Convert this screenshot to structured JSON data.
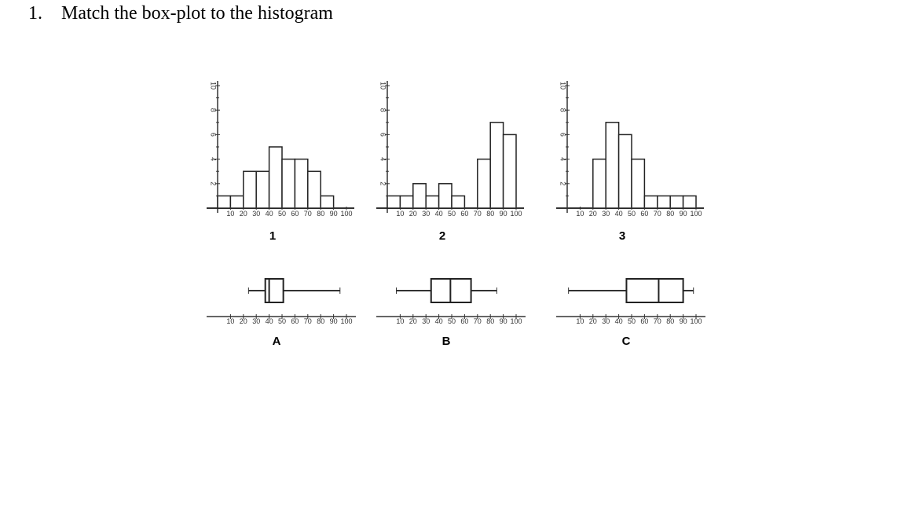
{
  "question": {
    "number": "1.",
    "text": "Match the box-plot to the histogram"
  },
  "chart_data": [
    {
      "type": "histogram",
      "title": "1",
      "bins": [
        0,
        10,
        20,
        30,
        40,
        50,
        60,
        70,
        80,
        90
      ],
      "counts": [
        1,
        1,
        3,
        3,
        5,
        4,
        4,
        3,
        1
      ],
      "xlim": [
        0,
        100
      ],
      "xticks": [
        10,
        20,
        30,
        40,
        50,
        60,
        70,
        80,
        90,
        100
      ],
      "ylim": [
        0,
        10
      ],
      "yticks": [
        2,
        4,
        6,
        8,
        10
      ],
      "color": "#ffffff"
    },
    {
      "type": "histogram",
      "title": "2",
      "bins": [
        0,
        10,
        20,
        30,
        40,
        50,
        60,
        70,
        80,
        90,
        100
      ],
      "counts": [
        1,
        1,
        2,
        1,
        2,
        1,
        0,
        4,
        7,
        6
      ],
      "xlim": [
        0,
        100
      ],
      "xticks": [
        10,
        20,
        30,
        40,
        50,
        60,
        70,
        80,
        90,
        100
      ],
      "ylim": [
        0,
        10
      ],
      "yticks": [
        2,
        4,
        6,
        8,
        10
      ],
      "color": "#ffffff"
    },
    {
      "type": "histogram",
      "title": "3",
      "bins": [
        0,
        10,
        20,
        30,
        40,
        50,
        60,
        70,
        80,
        90,
        100
      ],
      "counts": [
        0,
        0,
        4,
        7,
        6,
        4,
        1,
        1,
        1,
        1
      ],
      "xlim": [
        0,
        100
      ],
      "xticks": [
        10,
        20,
        30,
        40,
        50,
        60,
        70,
        80,
        90,
        100
      ],
      "ylim": [
        0,
        10
      ],
      "yticks": [
        2,
        4,
        6,
        8,
        10
      ],
      "color": "#ffffff"
    },
    {
      "type": "box",
      "title": "A",
      "min": 24,
      "q1": 37,
      "median": 40,
      "q3": 51,
      "max": 95,
      "xlim": [
        0,
        100
      ],
      "xticks": [
        10,
        20,
        30,
        40,
        50,
        60,
        70,
        80,
        90,
        100
      ],
      "color": "#ffffff"
    },
    {
      "type": "box",
      "title": "B",
      "min": 7,
      "q1": 34,
      "median": 49,
      "q3": 65,
      "max": 85,
      "xlim": [
        0,
        100
      ],
      "xticks": [
        10,
        20,
        30,
        40,
        50,
        60,
        70,
        80,
        90,
        100
      ],
      "color": "#ffffff"
    },
    {
      "type": "box",
      "title": "C",
      "min": 1,
      "q1": 46,
      "median": 71,
      "q3": 90,
      "max": 98,
      "xlim": [
        0,
        100
      ],
      "xticks": [
        10,
        20,
        30,
        40,
        50,
        60,
        70,
        80,
        90,
        100
      ],
      "color": "#ffffff"
    }
  ]
}
